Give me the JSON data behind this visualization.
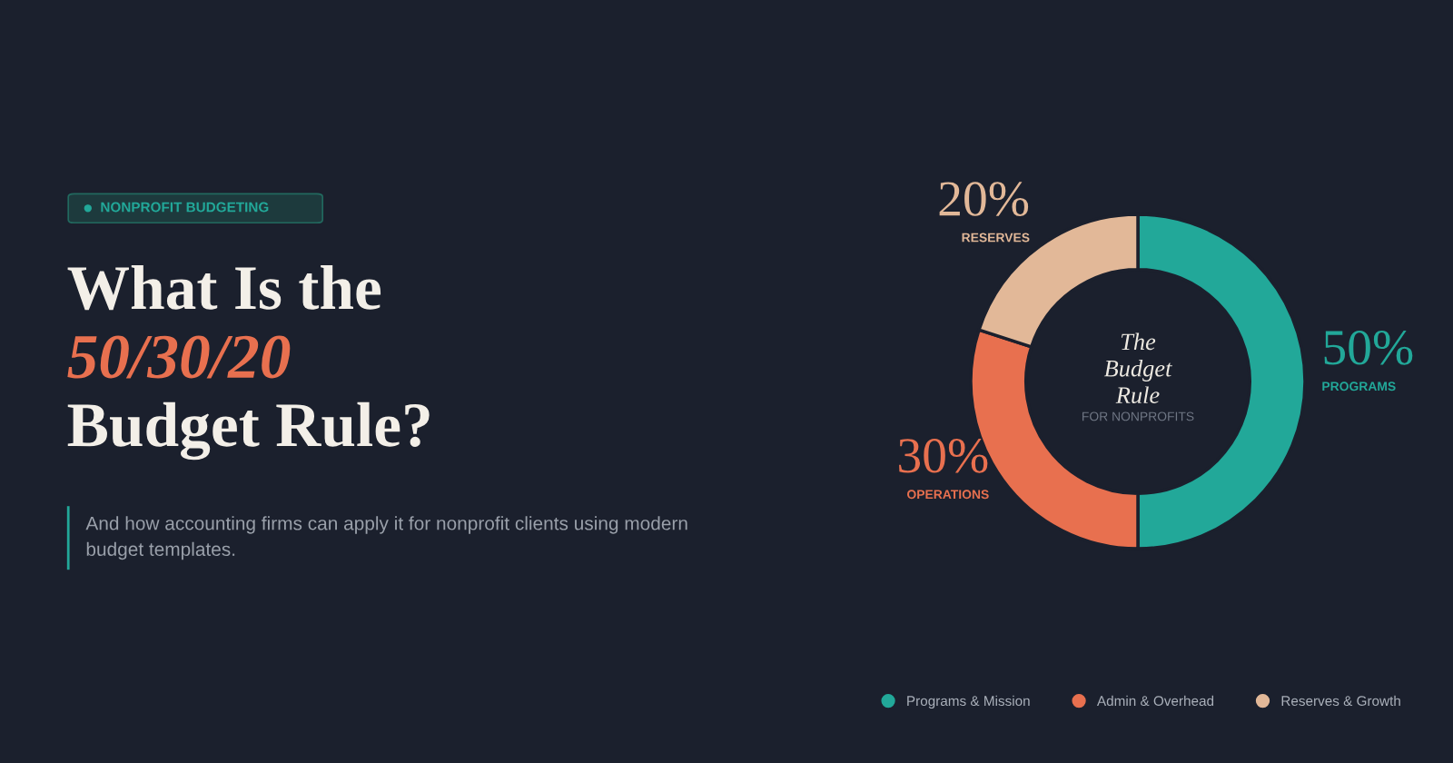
{
  "chart_data": {
    "type": "donut",
    "title": "What Is the\n50/30/20\nBudget Rule?",
    "subtitle": "And how accounting firms can apply it for nonprofit clients using modern budget templates.",
    "categories": [
      "Programs & Mission",
      "Admin & Overhead",
      "Reserves & Growth"
    ],
    "values": [
      50,
      30,
      20
    ],
    "colors": [
      "#22a899",
      "#e8704f",
      "#e2b898"
    ],
    "value_labels": [
      "50%",
      "30%",
      "20%"
    ],
    "annotations": [
      "NONPROFIT BUDGETING",
      "The\nBudget\nRule",
      "FOR NONPROFITS",
      {
        "text": "PROGRAMS",
        "x": "Programs & Mission"
      },
      {
        "text": "OPERATIONS",
        "x": "Admin & Overhead"
      },
      {
        "text": "RESERVES",
        "x": "Reserves & Growth"
      }
    ],
    "legend": "bottom"
  }
}
